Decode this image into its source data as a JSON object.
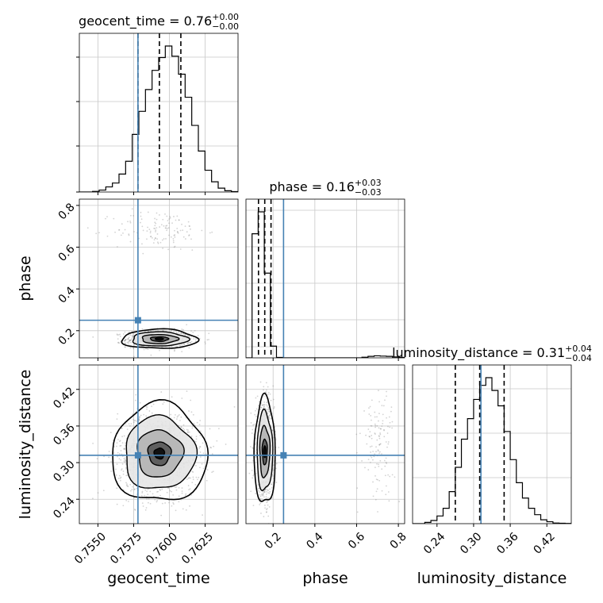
{
  "chart_data": {
    "type": "corner",
    "truth_color": "#4682b4",
    "parameters": [
      {
        "name": "geocent_time",
        "axis_label": "geocent_time",
        "title_main": "geocent_time = 0.76",
        "title_sup": "+0.00",
        "title_sub": "−0.00",
        "range": [
          0.7537,
          0.7648
        ],
        "ticks": [
          0.755,
          0.7575,
          0.76,
          0.7625
        ],
        "tick_labels": [
          "0.7550",
          "0.7575",
          "0.7600",
          "0.7625"
        ],
        "truth": 0.7578,
        "quantiles": [
          0.7578,
          0.7593,
          0.7608
        ]
      },
      {
        "name": "phase",
        "axis_label": "phase",
        "title_main": "phase = 0.16",
        "title_sup": "+0.03",
        "title_sub": "−0.03",
        "range": [
          0.07,
          0.83
        ],
        "ticks": [
          0.2,
          0.4,
          0.6,
          0.8
        ],
        "tick_labels": [
          "0.2",
          "0.4",
          "0.6",
          "0.8"
        ],
        "truth": 0.25,
        "quantiles": [
          0.13,
          0.16,
          0.19
        ]
      },
      {
        "name": "luminosity_distance",
        "axis_label": "luminosity_distance",
        "title_main": "luminosity_distance = 0.31",
        "title_sup": "+0.04",
        "title_sub": "−0.04",
        "range": [
          0.2,
          0.46
        ],
        "ticks": [
          0.24,
          0.3,
          0.36,
          0.42
        ],
        "tick_labels": [
          "0.24",
          "0.30",
          "0.36",
          "0.42"
        ],
        "truth": 0.312,
        "quantiles": [
          0.27,
          0.31,
          0.35
        ]
      }
    ],
    "histograms": [
      {
        "param": "geocent_time",
        "counts": [
          0,
          0,
          0.5,
          1.5,
          4,
          7,
          14,
          24,
          45,
          63,
          80,
          95,
          105,
          114,
          106,
          92,
          74,
          52,
          32,
          17,
          8,
          3,
          1,
          0.3
        ]
      },
      {
        "param": "phase",
        "counts": [
          0,
          85,
          100,
          58,
          8,
          0.3,
          0,
          0,
          0,
          0,
          0,
          0,
          0,
          0,
          0,
          0,
          0,
          0,
          0,
          0.4,
          1.0,
          1.4,
          1.2,
          1.0,
          0.6,
          0.3
        ]
      },
      {
        "param": "luminosity_distance",
        "counts": [
          0,
          0,
          1,
          2.5,
          6,
          12,
          25,
          44,
          66,
          82,
          97,
          108,
          114,
          104,
          92,
          72,
          50,
          32,
          20,
          12,
          7,
          3,
          1.5,
          0.5,
          0.3,
          0.2
        ]
      }
    ],
    "scatter_pairs": [
      {
        "x": "geocent_time",
        "y": "phase",
        "clusters": [
          {
            "cx": 0.7593,
            "cy": 0.16,
            "sx": 0.00115,
            "sy": 0.02,
            "n": 900
          },
          {
            "cx": 0.7593,
            "cy": 0.68,
            "sx": 0.0016,
            "sy": 0.05,
            "n": 130
          }
        ]
      },
      {
        "x": "geocent_time",
        "y": "luminosity_distance",
        "clusters": [
          {
            "cx": 0.7593,
            "cy": 0.315,
            "sx": 0.00145,
            "sy": 0.035,
            "n": 1300
          }
        ]
      },
      {
        "x": "phase",
        "y": "luminosity_distance",
        "clusters": [
          {
            "cx": 0.16,
            "cy": 0.318,
            "sx": 0.022,
            "sy": 0.038,
            "n": 1000
          },
          {
            "cx": 0.7,
            "cy": 0.33,
            "sx": 0.04,
            "sy": 0.045,
            "n": 130
          }
        ]
      }
    ]
  }
}
